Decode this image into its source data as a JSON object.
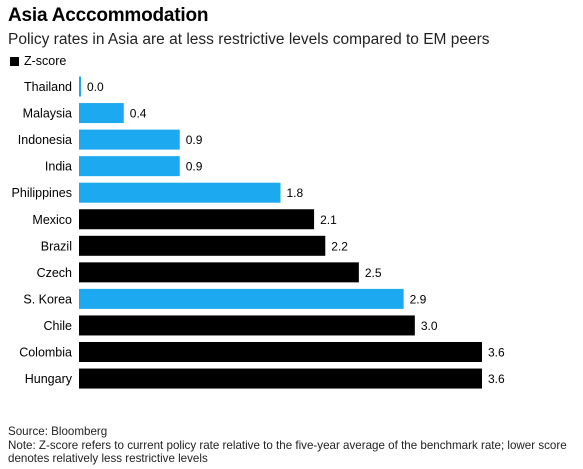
{
  "chart_data": {
    "type": "bar",
    "orientation": "horizontal",
    "title": "Asia Acccommodation",
    "subtitle": "Policy rates in Asia are at less restrictive levels compared to EM peers",
    "legend": [
      {
        "name": "Z-score",
        "color": "#000000"
      }
    ],
    "categories": [
      "Thailand",
      "Malaysia",
      "Indonesia",
      "India",
      "Philippines",
      "Mexico",
      "Brazil",
      "Czech",
      "S. Korea",
      "Chile",
      "Colombia",
      "Hungary"
    ],
    "values": [
      0.0,
      0.4,
      0.9,
      0.9,
      1.8,
      2.1,
      2.2,
      2.5,
      2.9,
      3.0,
      3.6,
      3.6
    ],
    "value_labels": [
      "0.0",
      "0.4",
      "0.9",
      "0.9",
      "1.8",
      "2.1",
      "2.2",
      "2.5",
      "2.9",
      "3.0",
      "3.6",
      "3.6"
    ],
    "highlighted": [
      true,
      true,
      true,
      true,
      true,
      false,
      false,
      false,
      true,
      false,
      false,
      false
    ],
    "colors": {
      "asia": "#1ca9f0",
      "other": "#000000"
    },
    "xlim": [
      0,
      3.6
    ],
    "grid": false,
    "legend_position": "top-left"
  },
  "footer": {
    "source": "Source: Bloomberg",
    "note": "Note: Z-score refers to current policy rate relative to the five-year average of the benchmark rate; lower score denotes relatively less restrictive levels"
  }
}
